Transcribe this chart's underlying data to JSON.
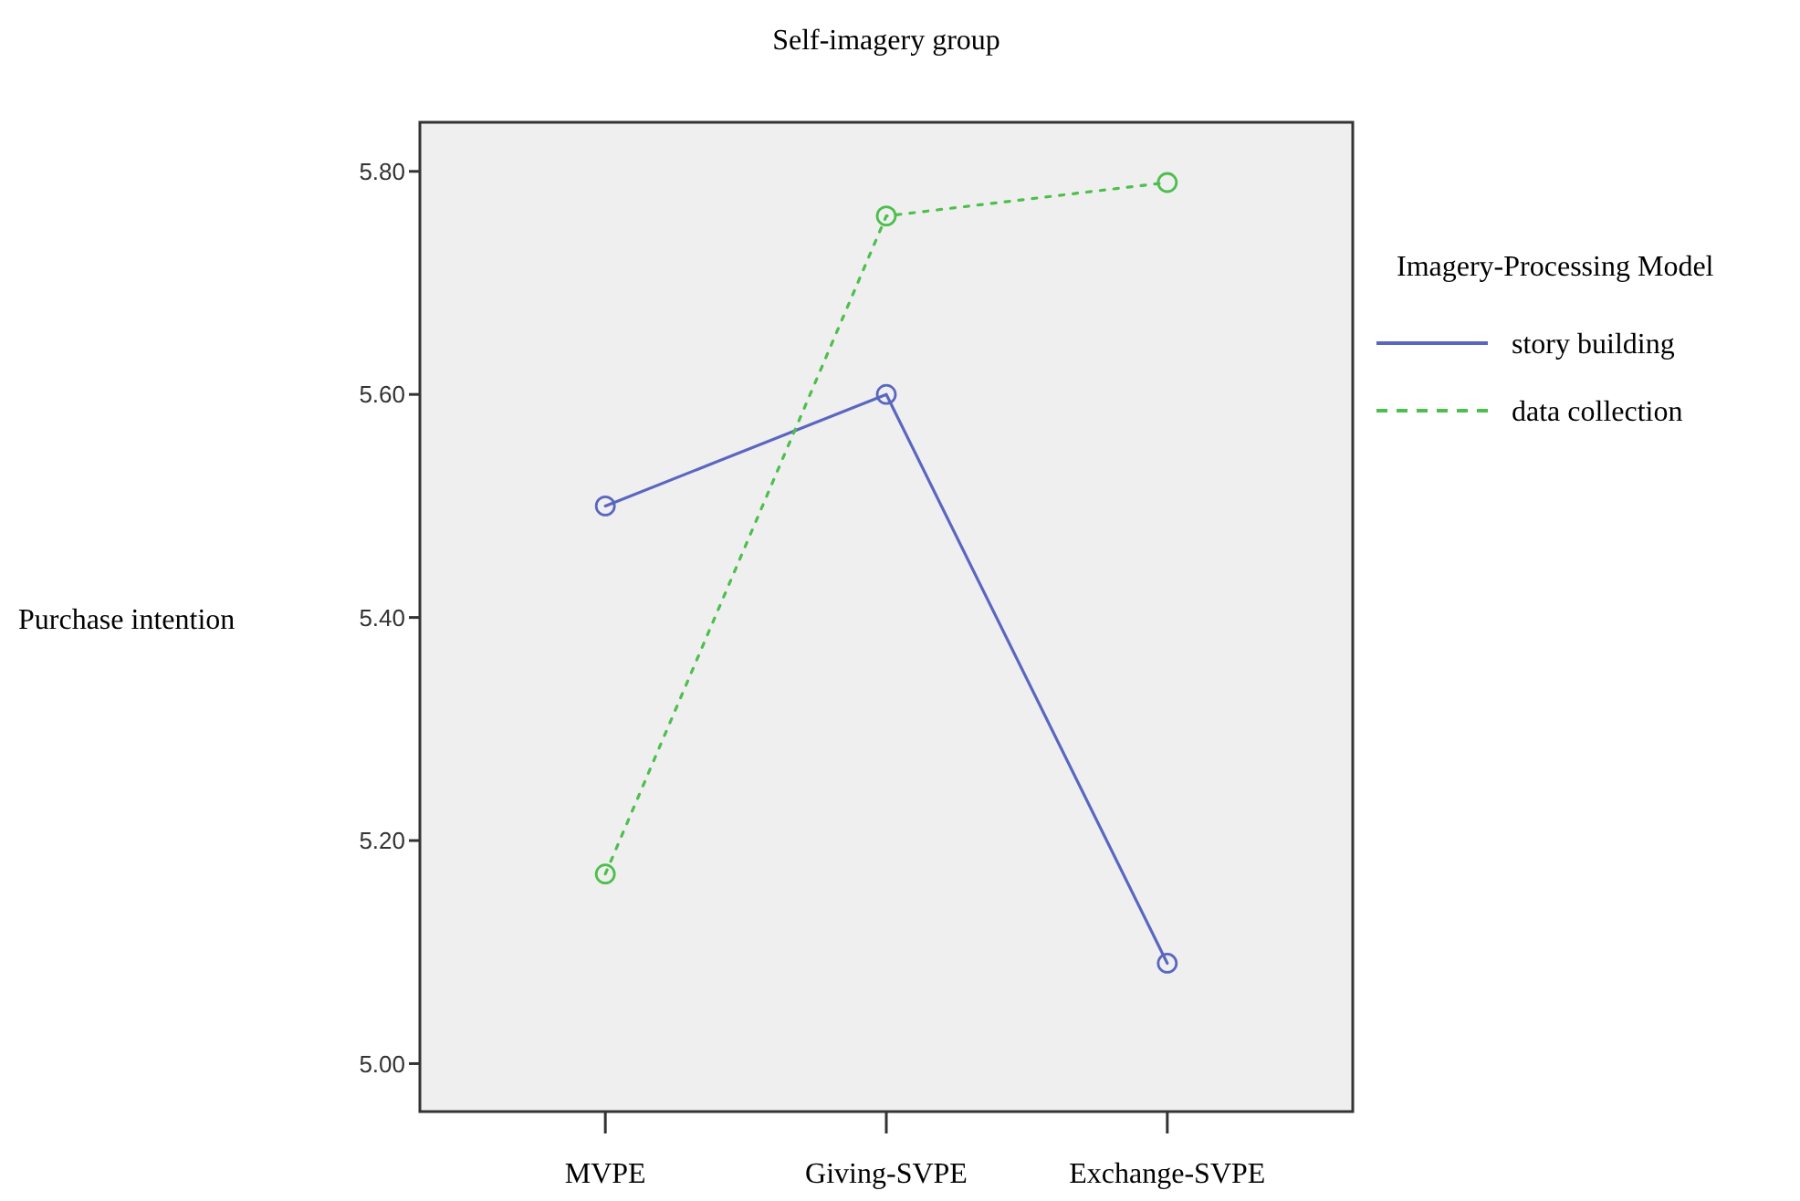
{
  "chart_data": {
    "type": "line",
    "title": "Self-imagery group",
    "ylabel": "Purchase intention",
    "legend_title": "Imagery-Processing Model",
    "categories": [
      "MVPE",
      "Giving-SVPE",
      "Exchange-SVPE"
    ],
    "series": [
      {
        "name": "story building",
        "color": "#5a67c0",
        "values": [
          5.5,
          5.6,
          5.09
        ],
        "line_style": "solid"
      },
      {
        "name": "data collection",
        "color": "#4cbf4c",
        "values": [
          5.17,
          5.76,
          5.79
        ],
        "line_style": "dotted"
      }
    ],
    "ylim": [
      4.957,
      5.844
    ],
    "yticks": [
      {
        "value": 5.0,
        "label": "5.00"
      },
      {
        "value": 5.2,
        "label": "5.20"
      },
      {
        "value": 5.4,
        "label": "5.40"
      },
      {
        "value": 5.6,
        "label": "5.60"
      },
      {
        "value": 5.8,
        "label": "5.80"
      }
    ],
    "marker": "circle",
    "grid": false,
    "legend": "right"
  }
}
